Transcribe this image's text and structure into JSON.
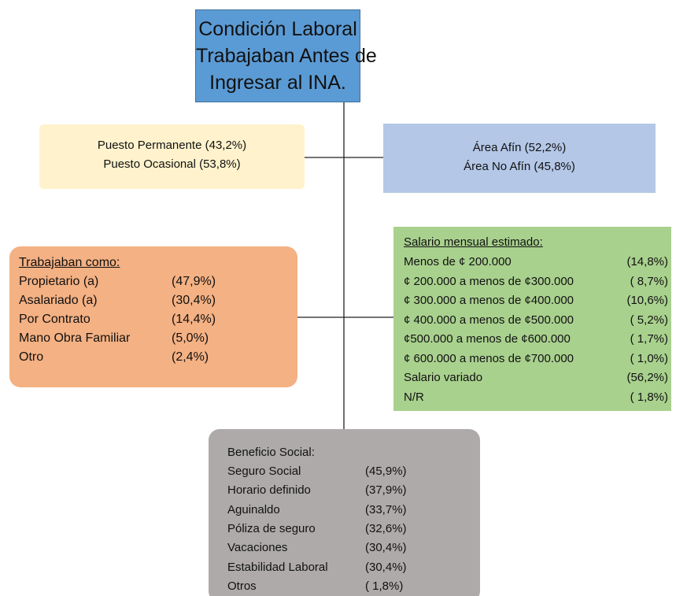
{
  "title": [
    "Condición Laboral",
    "Trabajaban Antes de",
    "Ingresar al INA."
  ],
  "puesto": [
    "Puesto Permanente (43,2%)",
    "Puesto Ocasional (53,8%)"
  ],
  "area": [
    "Área Afín (52,2%)",
    "Área No Afín (45,8%)"
  ],
  "trabajaban": {
    "heading": "Trabajaban como:",
    "rows": [
      {
        "label": "Propietario (a)",
        "value": "(47,9%)"
      },
      {
        "label": "Asalariado (a)",
        "value": "(30,4%)"
      },
      {
        "label": "Por Contrato",
        "value": "(14,4%)"
      },
      {
        "label": "Mano Obra Familiar",
        "value": "(5,0%)"
      },
      {
        "label": "Otro",
        "value": "(2,4%)"
      }
    ]
  },
  "salario": {
    "heading": "Salario mensual estimado:",
    "rows": [
      {
        "label": "Menos de ¢ 200.000",
        "value": "(14,8%)"
      },
      {
        "label": "¢ 200.000 a menos de ¢300.000",
        "value": "( 8,7%)"
      },
      {
        "label": "¢ 300.000 a menos de ¢400.000",
        "value": "(10,6%)"
      },
      {
        "label": "¢ 400.000 a menos de ¢500.000",
        "value": "( 5,2%)"
      },
      {
        "label": "¢500.000 a menos de ¢600.000",
        "value": "( 1,7%)"
      },
      {
        "label": "¢ 600.000 a menos de ¢700.000",
        "value": "( 1,0%)"
      },
      {
        "label": "Salario variado",
        "value": "(56,2%)"
      },
      {
        "label": "N/R",
        "value": "( 1,8%)"
      }
    ]
  },
  "beneficio": {
    "heading": "Beneficio Social:",
    "rows": [
      {
        "label": "Seguro Social",
        "value": "(45,9%)"
      },
      {
        "label": "Horario definido",
        "value": "(37,9%)"
      },
      {
        "label": "Aguinaldo",
        "value": "(33,7%)"
      },
      {
        "label": "Póliza de seguro",
        "value": "(32,6%)"
      },
      {
        "label": "Vacaciones",
        "value": "(30,4%)"
      },
      {
        "label": "Estabilidad Laboral",
        "value": "(30,4%)"
      },
      {
        "label": "Otros",
        "value": "( 1,8%)"
      }
    ]
  }
}
